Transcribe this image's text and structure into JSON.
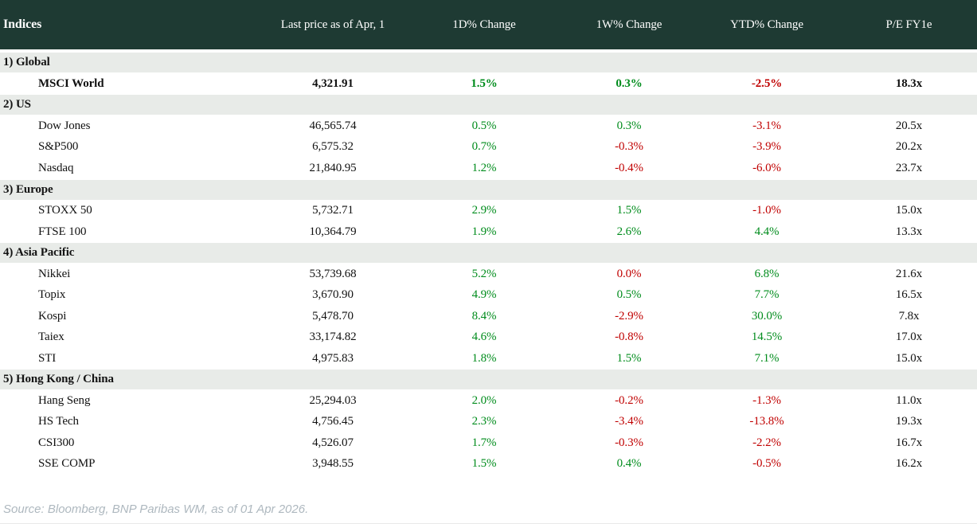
{
  "colors": {
    "header_bg": "#1e3a33",
    "section_bg": "#e8ebe8",
    "positive": "#008c1c",
    "negative": "#c00000",
    "source_text": "#aeb8bf"
  },
  "footer": {
    "source_note": "Source: Bloomberg, BNP Paribas WM, as of 01 Apr 2026."
  },
  "chart_data": {
    "type": "table",
    "title": "Indices",
    "columns": [
      "Indices",
      "Last price as of Apr, 1",
      "1D% Change",
      "1W% Change",
      "YTD% Change",
      "P/E FY1e"
    ],
    "sections": [
      {
        "label": "1) Global",
        "rows": [
          {
            "name": "MSCI World",
            "bold": true,
            "price": "4,321.91",
            "changes": [
              {
                "text": "1.5%",
                "tone": "pos"
              },
              {
                "text": "0.3%",
                "tone": "pos"
              },
              {
                "text": "-2.5%",
                "tone": "neg"
              }
            ],
            "pe": "18.3x"
          }
        ]
      },
      {
        "label": "2) US",
        "rows": [
          {
            "name": "Dow Jones",
            "bold": false,
            "price": "46,565.74",
            "changes": [
              {
                "text": "0.5%",
                "tone": "pos"
              },
              {
                "text": "0.3%",
                "tone": "pos"
              },
              {
                "text": "-3.1%",
                "tone": "neg"
              }
            ],
            "pe": "20.5x"
          },
          {
            "name": "S&P500",
            "bold": false,
            "price": "6,575.32",
            "changes": [
              {
                "text": "0.7%",
                "tone": "pos"
              },
              {
                "text": "-0.3%",
                "tone": "neg"
              },
              {
                "text": "-3.9%",
                "tone": "neg"
              }
            ],
            "pe": "20.2x"
          },
          {
            "name": "Nasdaq",
            "bold": false,
            "price": "21,840.95",
            "changes": [
              {
                "text": "1.2%",
                "tone": "pos"
              },
              {
                "text": "-0.4%",
                "tone": "neg"
              },
              {
                "text": "-6.0%",
                "tone": "neg"
              }
            ],
            "pe": "23.7x"
          }
        ]
      },
      {
        "label": "3) Europe",
        "rows": [
          {
            "name": "STOXX 50",
            "bold": false,
            "price": "5,732.71",
            "changes": [
              {
                "text": "2.9%",
                "tone": "pos"
              },
              {
                "text": "1.5%",
                "tone": "pos"
              },
              {
                "text": "-1.0%",
                "tone": "neg"
              }
            ],
            "pe": "15.0x"
          },
          {
            "name": "FTSE 100",
            "bold": false,
            "price": "10,364.79",
            "changes": [
              {
                "text": "1.9%",
                "tone": "pos"
              },
              {
                "text": "2.6%",
                "tone": "pos"
              },
              {
                "text": "4.4%",
                "tone": "pos"
              }
            ],
            "pe": "13.3x"
          }
        ]
      },
      {
        "label": "4) Asia Pacific",
        "rows": [
          {
            "name": "Nikkei",
            "bold": false,
            "price": "53,739.68",
            "changes": [
              {
                "text": "5.2%",
                "tone": "pos"
              },
              {
                "text": "0.0%",
                "tone": "neg"
              },
              {
                "text": "6.8%",
                "tone": "pos"
              }
            ],
            "pe": "21.6x"
          },
          {
            "name": "Topix",
            "bold": false,
            "price": "3,670.90",
            "changes": [
              {
                "text": "4.9%",
                "tone": "pos"
              },
              {
                "text": "0.5%",
                "tone": "pos"
              },
              {
                "text": "7.7%",
                "tone": "pos"
              }
            ],
            "pe": "16.5x"
          },
          {
            "name": "Kospi",
            "bold": false,
            "price": "5,478.70",
            "changes": [
              {
                "text": "8.4%",
                "tone": "pos"
              },
              {
                "text": "-2.9%",
                "tone": "neg"
              },
              {
                "text": "30.0%",
                "tone": "pos"
              }
            ],
            "pe": "7.8x"
          },
          {
            "name": "Taiex",
            "bold": false,
            "price": "33,174.82",
            "changes": [
              {
                "text": "4.6%",
                "tone": "pos"
              },
              {
                "text": "-0.8%",
                "tone": "neg"
              },
              {
                "text": "14.5%",
                "tone": "pos"
              }
            ],
            "pe": "17.0x"
          },
          {
            "name": "STI",
            "bold": false,
            "price": "4,975.83",
            "changes": [
              {
                "text": "1.8%",
                "tone": "pos"
              },
              {
                "text": "1.5%",
                "tone": "pos"
              },
              {
                "text": "7.1%",
                "tone": "pos"
              }
            ],
            "pe": "15.0x"
          }
        ]
      },
      {
        "label": "5) Hong Kong / China",
        "rows": [
          {
            "name": "Hang Seng",
            "bold": false,
            "price": "25,294.03",
            "changes": [
              {
                "text": "2.0%",
                "tone": "pos"
              },
              {
                "text": "-0.2%",
                "tone": "neg"
              },
              {
                "text": "-1.3%",
                "tone": "neg"
              }
            ],
            "pe": "11.0x"
          },
          {
            "name": "HS Tech",
            "bold": false,
            "price": "4,756.45",
            "changes": [
              {
                "text": "2.3%",
                "tone": "pos"
              },
              {
                "text": "-3.4%",
                "tone": "neg"
              },
              {
                "text": "-13.8%",
                "tone": "neg"
              }
            ],
            "pe": "19.3x"
          },
          {
            "name": "CSI300",
            "bold": false,
            "price": "4,526.07",
            "changes": [
              {
                "text": "1.7%",
                "tone": "pos"
              },
              {
                "text": "-0.3%",
                "tone": "neg"
              },
              {
                "text": "-2.2%",
                "tone": "neg"
              }
            ],
            "pe": "16.7x"
          },
          {
            "name": "SSE COMP",
            "bold": false,
            "price": "3,948.55",
            "changes": [
              {
                "text": "1.5%",
                "tone": "pos"
              },
              {
                "text": "0.4%",
                "tone": "pos"
              },
              {
                "text": "-0.5%",
                "tone": "neg"
              }
            ],
            "pe": "16.2x"
          }
        ]
      }
    ]
  }
}
